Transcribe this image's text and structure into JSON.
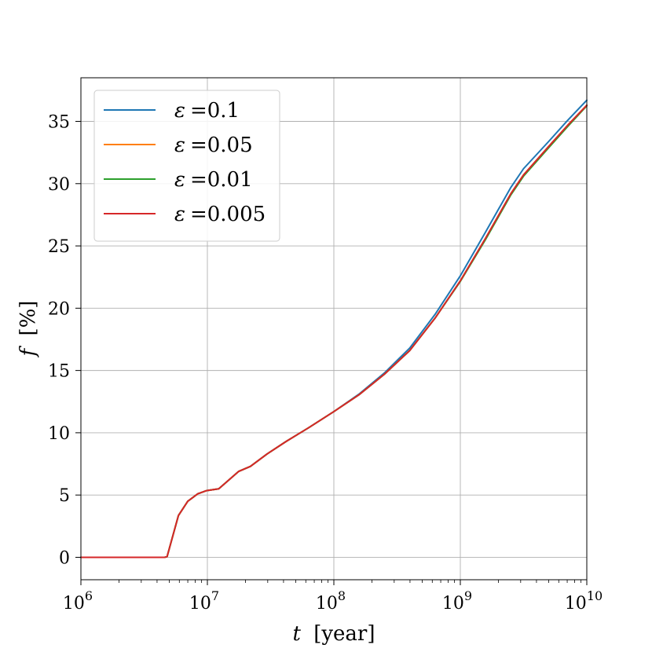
{
  "chart_data": {
    "type": "line",
    "x_scale": "log",
    "xlim": [
      1000000,
      10000000000
    ],
    "ylim": [
      -1.8,
      38.5
    ],
    "grid": true,
    "legend_position": "top-left",
    "xlabel_var": "t",
    "xlabel_unit": "[year]",
    "ylabel_var": "f",
    "ylabel_unit": "[%]",
    "x_ticks": [
      {
        "value": 1000000,
        "base": "10",
        "exp": "6"
      },
      {
        "value": 10000000,
        "base": "10",
        "exp": "7"
      },
      {
        "value": 100000000,
        "base": "10",
        "exp": "8"
      },
      {
        "value": 1000000000,
        "base": "10",
        "exp": "9"
      },
      {
        "value": 10000000000,
        "base": "10",
        "exp": "10"
      }
    ],
    "y_ticks": [
      0,
      5,
      10,
      15,
      20,
      25,
      30,
      35
    ],
    "legend_symbol": "ε",
    "series": [
      {
        "name": "=0.1",
        "color": "#1f77b4",
        "points": [
          [
            1000000,
            0
          ],
          [
            4600000,
            0
          ],
          [
            4800000,
            0.05
          ],
          [
            5900000,
            3.35
          ],
          [
            7000000,
            4.5
          ],
          [
            8400000,
            5.1
          ],
          [
            9800000,
            5.35
          ],
          [
            12300000,
            5.5
          ],
          [
            17700000,
            6.9
          ],
          [
            21900000,
            7.3
          ],
          [
            29700000,
            8.3
          ],
          [
            41900000,
            9.3
          ],
          [
            63100000,
            10.4
          ],
          [
            100000000,
            11.7
          ],
          [
            158000000,
            13.1
          ],
          [
            251000000,
            14.8
          ],
          [
            398000000,
            16.8
          ],
          [
            631000000,
            19.5
          ],
          [
            1000000000,
            22.6
          ],
          [
            1580000000,
            26.1
          ],
          [
            2510000000,
            29.7
          ],
          [
            3160000000,
            31.2
          ],
          [
            5010000000,
            33.4
          ],
          [
            7080000000,
            35.1
          ],
          [
            10000000000,
            36.7
          ]
        ]
      },
      {
        "name": "=0.05",
        "color": "#ff7f0e",
        "points": [
          [
            1000000,
            0
          ],
          [
            4600000,
            0
          ],
          [
            4800000,
            0.05
          ],
          [
            5900000,
            3.35
          ],
          [
            7000000,
            4.5
          ],
          [
            8400000,
            5.1
          ],
          [
            9800000,
            5.35
          ],
          [
            12300000,
            5.5
          ],
          [
            17700000,
            6.9
          ],
          [
            21900000,
            7.3
          ],
          [
            29700000,
            8.3
          ],
          [
            41900000,
            9.3
          ],
          [
            63100000,
            10.4
          ],
          [
            100000000,
            11.7
          ],
          [
            158000000,
            13.05
          ],
          [
            251000000,
            14.7
          ],
          [
            398000000,
            16.6
          ],
          [
            631000000,
            19.2
          ],
          [
            1000000000,
            22.2
          ],
          [
            1580000000,
            25.6
          ],
          [
            2510000000,
            29.2
          ],
          [
            3160000000,
            30.7
          ],
          [
            5010000000,
            33.0
          ],
          [
            7080000000,
            34.7
          ],
          [
            10000000000,
            36.3
          ]
        ]
      },
      {
        "name": "=0.01",
        "color": "#2ca02c",
        "points": [
          [
            1000000,
            0
          ],
          [
            4600000,
            0
          ],
          [
            4800000,
            0.05
          ],
          [
            5900000,
            3.35
          ],
          [
            7000000,
            4.5
          ],
          [
            8400000,
            5.1
          ],
          [
            9800000,
            5.35
          ],
          [
            12300000,
            5.5
          ],
          [
            17700000,
            6.9
          ],
          [
            21900000,
            7.3
          ],
          [
            29700000,
            8.3
          ],
          [
            41900000,
            9.3
          ],
          [
            63100000,
            10.4
          ],
          [
            100000000,
            11.7
          ],
          [
            158000000,
            13.05
          ],
          [
            251000000,
            14.7
          ],
          [
            398000000,
            16.6
          ],
          [
            631000000,
            19.2
          ],
          [
            1000000000,
            22.15
          ],
          [
            1580000000,
            25.5
          ],
          [
            2510000000,
            29.1
          ],
          [
            3160000000,
            30.6
          ],
          [
            5010000000,
            32.9
          ],
          [
            7080000000,
            34.6
          ],
          [
            10000000000,
            36.25
          ]
        ]
      },
      {
        "name": "=0.005",
        "color": "#d62728",
        "points": [
          [
            1000000,
            0
          ],
          [
            4600000,
            0
          ],
          [
            4800000,
            0.05
          ],
          [
            5900000,
            3.35
          ],
          [
            7000000,
            4.5
          ],
          [
            8400000,
            5.1
          ],
          [
            9800000,
            5.35
          ],
          [
            12300000,
            5.5
          ],
          [
            17700000,
            6.9
          ],
          [
            21900000,
            7.3
          ],
          [
            29700000,
            8.3
          ],
          [
            41900000,
            9.3
          ],
          [
            63100000,
            10.4
          ],
          [
            100000000,
            11.7
          ],
          [
            158000000,
            13.05
          ],
          [
            251000000,
            14.7
          ],
          [
            398000000,
            16.6
          ],
          [
            631000000,
            19.2
          ],
          [
            1000000000,
            22.2
          ],
          [
            1580000000,
            25.6
          ],
          [
            2510000000,
            29.2
          ],
          [
            3160000000,
            30.7
          ],
          [
            5010000000,
            33.0
          ],
          [
            7080000000,
            34.7
          ],
          [
            10000000000,
            36.3
          ]
        ]
      }
    ]
  }
}
